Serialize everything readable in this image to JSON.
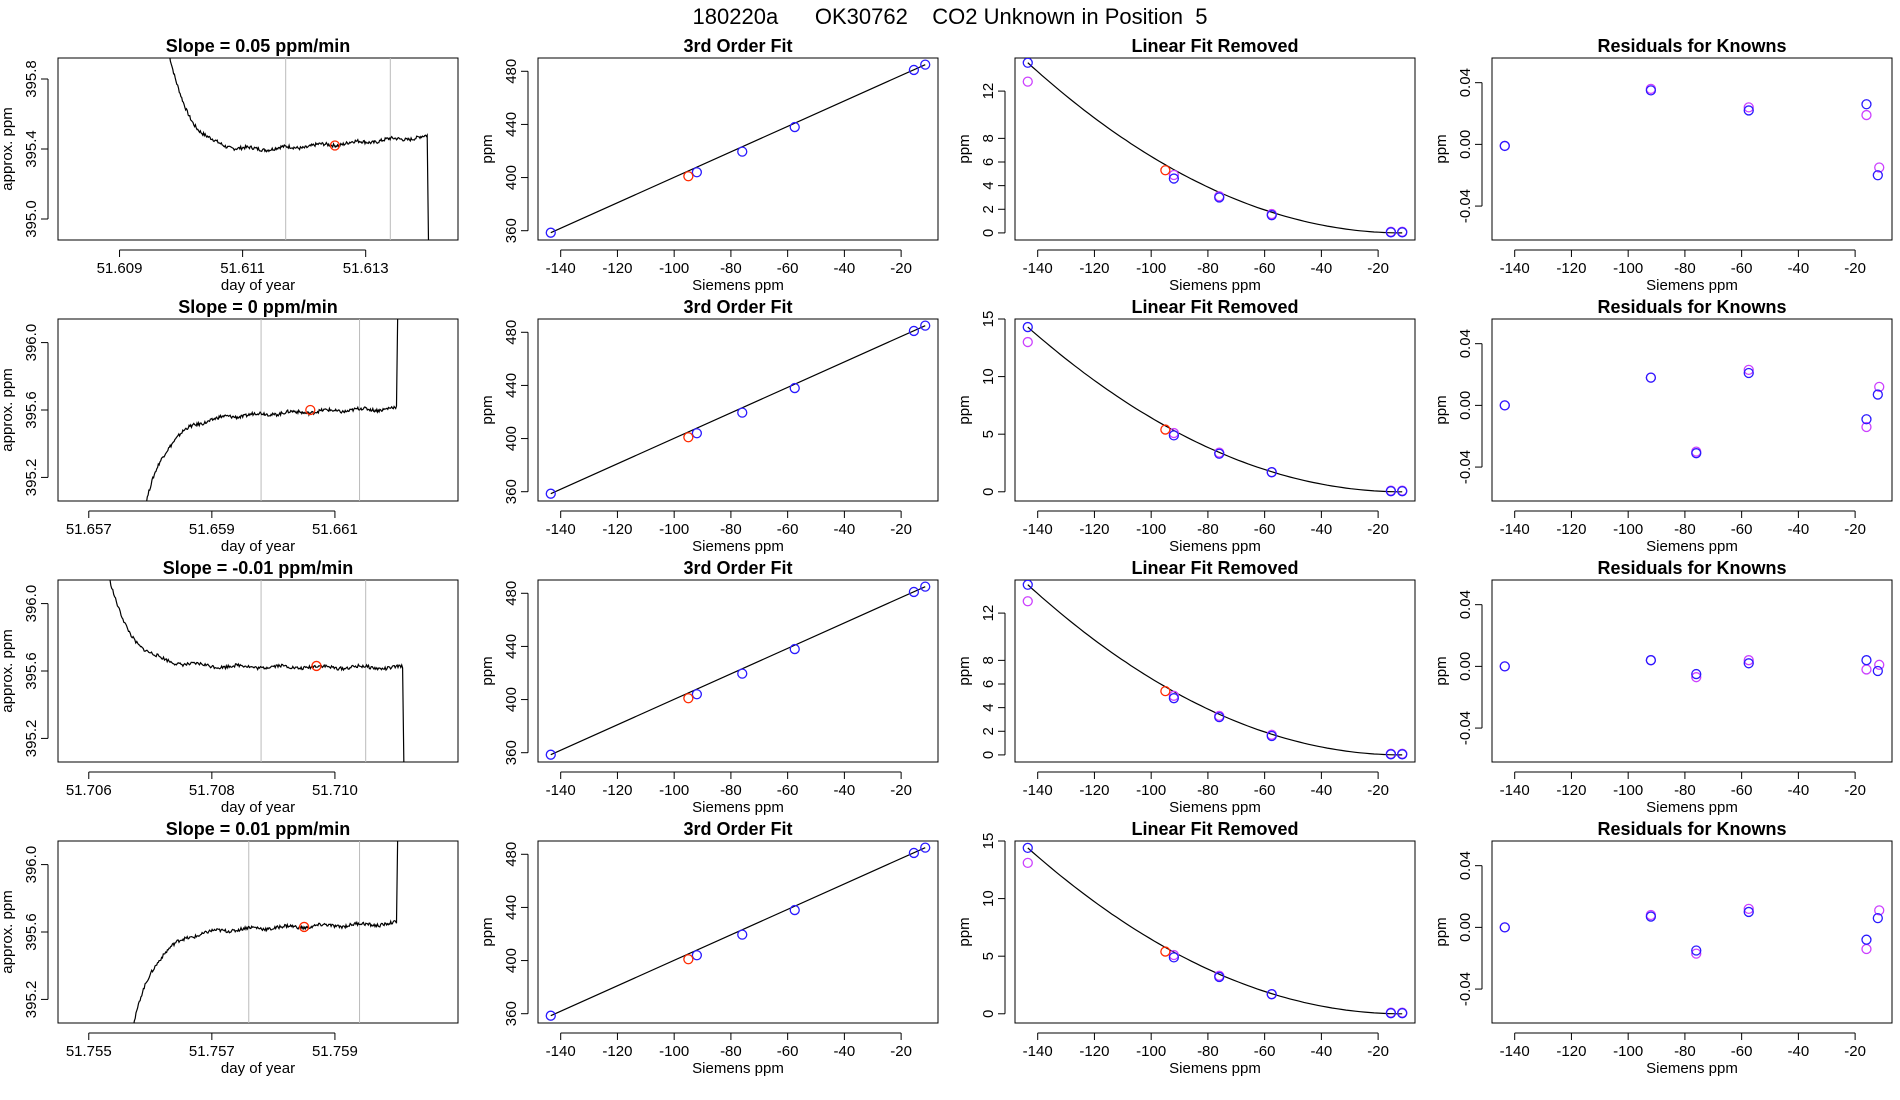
{
  "title": {
    "run_id": "180220a",
    "tank_id": "OK30762",
    "description": "CO2 Unknown in Position",
    "position": "5"
  },
  "colors": {
    "axis": "#000000",
    "trace": "#000000",
    "fit_line": "#000000",
    "vline": "#bbbbbb",
    "unknown": "#ff2a00",
    "known_a": "#2a1aff",
    "known_b": "#cc40ff"
  },
  "chart_data": [
    {
      "row": 0,
      "col": 0,
      "type": "line",
      "title": "Slope =  0.05  ppm/min",
      "xlabel": "day of year",
      "ylabel": "approx. ppm",
      "xlim": [
        51.608,
        51.6145
      ],
      "ylim": [
        394.88,
        395.92
      ],
      "xticks": [
        51.609,
        51.611,
        51.613
      ],
      "xtick_labels": [
        "51.609",
        "51.611",
        "51.613"
      ],
      "yticks": [
        395.0,
        395.4,
        395.8
      ],
      "ytick_labels": [
        "395.0",
        "395.4",
        "395.8"
      ],
      "start": 51.6098,
      "end": 51.614,
      "pre_level": 395.95,
      "level": 395.35,
      "end_level": 395.47,
      "tau": 0.00035,
      "post": "down",
      "vlines": [
        51.6117,
        51.6134
      ],
      "unknown_point": {
        "x": 51.6125,
        "y": 395.42
      }
    },
    {
      "row": 1,
      "col": 0,
      "type": "line",
      "title": "Slope =  0  ppm/min",
      "xlabel": "day of year",
      "ylabel": "approx. ppm",
      "xlim": [
        51.6565,
        51.663
      ],
      "ylim": [
        395.06,
        396.14
      ],
      "xticks": [
        51.657,
        51.659,
        51.661
      ],
      "xtick_labels": [
        "51.657",
        "51.659",
        "51.661"
      ],
      "yticks": [
        395.2,
        395.6,
        396.0
      ],
      "ytick_labels": [
        "395.2",
        "395.6",
        "396.0"
      ],
      "start": 51.6579,
      "end": 51.662,
      "pre_level": 395.0,
      "level": 395.55,
      "end_level": 395.61,
      "tau": 0.00035,
      "post": "up",
      "vlines": [
        51.6598,
        51.6614
      ],
      "unknown_point": {
        "x": 51.6606,
        "y": 395.6
      }
    },
    {
      "row": 2,
      "col": 0,
      "type": "line",
      "title": "Slope =  -0.01  ppm/min",
      "xlabel": "day of year",
      "ylabel": "approx. ppm",
      "xlim": [
        51.7055,
        51.712
      ],
      "ylim": [
        395.06,
        396.14
      ],
      "xticks": [
        51.706,
        51.708,
        51.71
      ],
      "xtick_labels": [
        "51.706",
        "51.708",
        "51.710"
      ],
      "yticks": [
        395.2,
        395.6,
        396.0
      ],
      "ytick_labels": [
        "395.2",
        "395.6",
        "396.0"
      ],
      "start": 51.7063,
      "end": 51.7111,
      "pre_level": 396.2,
      "level": 395.63,
      "end_level": 395.62,
      "tau": 0.00035,
      "post": "down",
      "vlines": [
        51.7088,
        51.7105
      ],
      "unknown_point": {
        "x": 51.7097,
        "y": 395.63
      }
    },
    {
      "row": 3,
      "col": 0,
      "type": "line",
      "title": "Slope =  0.01  ppm/min",
      "xlabel": "day of year",
      "ylabel": "approx. ppm",
      "xlim": [
        51.7545,
        51.761
      ],
      "ylim": [
        395.06,
        396.14
      ],
      "xticks": [
        51.755,
        51.757,
        51.759
      ],
      "xtick_labels": [
        "51.755",
        "51.757",
        "51.759"
      ],
      "yticks": [
        395.2,
        395.6,
        396.0
      ],
      "ytick_labels": [
        "395.2",
        "395.6",
        "396.0"
      ],
      "start": 51.7557,
      "end": 51.76,
      "pre_level": 395.0,
      "level": 395.6,
      "end_level": 395.65,
      "tau": 0.00035,
      "post": "up",
      "vlines": [
        51.7576,
        51.7594
      ],
      "unknown_point": {
        "x": 51.7585,
        "y": 395.63
      }
    },
    {
      "row": 0,
      "col": 1,
      "type": "scatter",
      "title": "3rd Order Fit",
      "xlabel": "Siemens ppm",
      "ylabel": "ppm",
      "xlim": [
        -148,
        -7
      ],
      "ylim": [
        353,
        490
      ],
      "xticks": [
        -140,
        -120,
        -100,
        -80,
        -60,
        -40,
        -20
      ],
      "yticks": [
        360,
        400,
        440,
        480
      ],
      "curve": "cubic",
      "knowns_a": [
        [
          -143.5,
          358.5
        ],
        [
          -92,
          404
        ],
        [
          -76,
          419.5
        ],
        [
          -57.5,
          438
        ],
        [
          -15.5,
          481
        ],
        [
          -11.5,
          485
        ]
      ],
      "unknowns": [
        [
          -95,
          401
        ]
      ]
    },
    {
      "row": 1,
      "col": 1,
      "type": "scatter",
      "title": "3rd Order Fit",
      "xlabel": "Siemens ppm",
      "ylabel": "ppm",
      "xlim": [
        -148,
        -7
      ],
      "ylim": [
        353,
        490
      ],
      "xticks": [
        -140,
        -120,
        -100,
        -80,
        -60,
        -40,
        -20
      ],
      "yticks": [
        360,
        400,
        440,
        480
      ],
      "curve": "cubic",
      "knowns_a": [
        [
          -143.5,
          358.5
        ],
        [
          -92,
          404
        ],
        [
          -76,
          419.5
        ],
        [
          -57.5,
          438
        ],
        [
          -15.5,
          481
        ],
        [
          -11.5,
          485
        ]
      ],
      "unknowns": [
        [
          -95,
          401
        ]
      ]
    },
    {
      "row": 2,
      "col": 1,
      "type": "scatter",
      "title": "3rd Order Fit",
      "xlabel": "Siemens ppm",
      "ylabel": "ppm",
      "xlim": [
        -148,
        -7
      ],
      "ylim": [
        353,
        490
      ],
      "xticks": [
        -140,
        -120,
        -100,
        -80,
        -60,
        -40,
        -20
      ],
      "yticks": [
        360,
        400,
        440,
        480
      ],
      "curve": "cubic",
      "knowns_a": [
        [
          -143.5,
          358.5
        ],
        [
          -92,
          404
        ],
        [
          -76,
          419.5
        ],
        [
          -57.5,
          438
        ],
        [
          -15.5,
          481
        ],
        [
          -11.5,
          485
        ]
      ],
      "unknowns": [
        [
          -95,
          401
        ]
      ]
    },
    {
      "row": 3,
      "col": 1,
      "type": "scatter",
      "title": "3rd Order Fit",
      "xlabel": "Siemens ppm",
      "ylabel": "ppm",
      "xlim": [
        -148,
        -7
      ],
      "ylim": [
        353,
        490
      ],
      "xticks": [
        -140,
        -120,
        -100,
        -80,
        -60,
        -40,
        -20
      ],
      "yticks": [
        360,
        400,
        440,
        480
      ],
      "curve": "cubic",
      "knowns_a": [
        [
          -143.5,
          358.5
        ],
        [
          -92,
          404
        ],
        [
          -76,
          419.5
        ],
        [
          -57.5,
          438
        ],
        [
          -15.5,
          481
        ],
        [
          -11.5,
          485
        ]
      ],
      "unknowns": [
        [
          -95,
          401
        ]
      ]
    },
    {
      "row": 0,
      "col": 2,
      "type": "scatter",
      "title": "Linear Fit Removed",
      "xlabel": "Siemens ppm",
      "ylabel": "ppm",
      "xlim": [
        -148,
        -7
      ],
      "ylim": [
        -0.6,
        14.8
      ],
      "xticks": [
        -140,
        -120,
        -100,
        -80,
        -60,
        -40,
        -20
      ],
      "yticks": [
        0,
        2,
        4,
        6,
        8,
        12
      ],
      "curve": "quadratic",
      "curve_peak": 14.4,
      "knowns_a": [
        [
          -143.5,
          14.4
        ],
        [
          -92,
          4.6
        ],
        [
          -76,
          3.0
        ],
        [
          -57.5,
          1.5
        ],
        [
          -15.5,
          0.05
        ],
        [
          -11.5,
          0.05
        ]
      ],
      "knowns_b": [
        [
          -143.5,
          12.8
        ],
        [
          -92,
          4.9
        ],
        [
          -76,
          3.1
        ],
        [
          -57.5,
          1.6
        ],
        [
          -15.5,
          0.1
        ],
        [
          -11.5,
          0.1
        ]
      ],
      "unknowns": [
        [
          -95,
          5.3
        ]
      ]
    },
    {
      "row": 1,
      "col": 2,
      "type": "scatter",
      "title": "Linear Fit Removed",
      "xlabel": "Siemens ppm",
      "ylabel": "ppm",
      "xlim": [
        -148,
        -7
      ],
      "ylim": [
        -0.8,
        15
      ],
      "xticks": [
        -140,
        -120,
        -100,
        -80,
        -60,
        -40,
        -20
      ],
      "yticks": [
        0,
        5,
        10,
        15
      ],
      "curve": "quadratic",
      "curve_peak": 14.3,
      "knowns_a": [
        [
          -143.5,
          14.3
        ],
        [
          -92,
          4.9
        ],
        [
          -76,
          3.3
        ],
        [
          -57.5,
          1.7
        ],
        [
          -15.5,
          0.05
        ],
        [
          -11.5,
          0.05
        ]
      ],
      "knowns_b": [
        [
          -143.5,
          13.0
        ],
        [
          -92,
          5.1
        ],
        [
          -76,
          3.4
        ],
        [
          -57.5,
          1.7
        ],
        [
          -15.5,
          0.1
        ],
        [
          -11.5,
          0.1
        ]
      ],
      "unknowns": [
        [
          -95,
          5.4
        ]
      ]
    },
    {
      "row": 2,
      "col": 2,
      "type": "scatter",
      "title": "Linear Fit Removed",
      "xlabel": "Siemens ppm",
      "ylabel": "ppm",
      "xlim": [
        -148,
        -7
      ],
      "ylim": [
        -0.6,
        14.8
      ],
      "xticks": [
        -140,
        -120,
        -100,
        -80,
        -60,
        -40,
        -20
      ],
      "yticks": [
        0,
        2,
        4,
        6,
        8,
        12
      ],
      "curve": "quadratic",
      "curve_peak": 14.4,
      "knowns_a": [
        [
          -143.5,
          14.4
        ],
        [
          -92,
          4.8
        ],
        [
          -76,
          3.2
        ],
        [
          -57.5,
          1.6
        ],
        [
          -15.5,
          0.05
        ],
        [
          -11.5,
          0.05
        ]
      ],
      "knowns_b": [
        [
          -143.5,
          13.0
        ],
        [
          -92,
          5.0
        ],
        [
          -76,
          3.3
        ],
        [
          -57.5,
          1.7
        ],
        [
          -15.5,
          0.1
        ],
        [
          -11.5,
          0.1
        ]
      ],
      "unknowns": [
        [
          -95,
          5.4
        ]
      ]
    },
    {
      "row": 3,
      "col": 2,
      "type": "scatter",
      "title": "Linear Fit Removed",
      "xlabel": "Siemens ppm",
      "ylabel": "ppm",
      "xlim": [
        -148,
        -7
      ],
      "ylim": [
        -0.8,
        15
      ],
      "xticks": [
        -140,
        -120,
        -100,
        -80,
        -60,
        -40,
        -20
      ],
      "yticks": [
        0,
        5,
        10,
        15
      ],
      "curve": "quadratic",
      "curve_peak": 14.4,
      "knowns_a": [
        [
          -143.5,
          14.4
        ],
        [
          -92,
          4.9
        ],
        [
          -76,
          3.2
        ],
        [
          -57.5,
          1.7
        ],
        [
          -15.5,
          0.05
        ],
        [
          -11.5,
          0.05
        ]
      ],
      "knowns_b": [
        [
          -143.5,
          13.1
        ],
        [
          -92,
          5.1
        ],
        [
          -76,
          3.3
        ],
        [
          -57.5,
          1.7
        ],
        [
          -15.5,
          0.1
        ],
        [
          -11.5,
          0.1
        ]
      ],
      "unknowns": [
        [
          -95,
          5.4
        ]
      ]
    },
    {
      "row": 0,
      "col": 3,
      "type": "scatter",
      "title": "Residuals for Knowns",
      "xlabel": "Siemens ppm",
      "ylabel": "ppm",
      "xlim": [
        -148,
        -7
      ],
      "ylim": [
        -0.062,
        0.056
      ],
      "xticks": [
        -140,
        -120,
        -100,
        -80,
        -60,
        -40,
        -20
      ],
      "yticks": [
        -0.04,
        0.0,
        0.04
      ],
      "ytick_labels": [
        "-0.04",
        "0.00",
        "0.04"
      ],
      "knowns_a": [
        [
          -143.5,
          -0.001
        ],
        [
          -92,
          0.035
        ],
        [
          -57.5,
          0.022
        ],
        [
          -16,
          0.026
        ],
        [
          -12,
          -0.02
        ]
      ],
      "knowns_b": [
        [
          -143.5,
          -0.001
        ],
        [
          -92,
          0.036
        ],
        [
          -57.5,
          0.024
        ],
        [
          -16,
          0.019
        ],
        [
          -11.5,
          -0.015
        ]
      ]
    },
    {
      "row": 1,
      "col": 3,
      "type": "scatter",
      "title": "Residuals for Knowns",
      "xlabel": "Siemens ppm",
      "ylabel": "ppm",
      "xlim": [
        -148,
        -7
      ],
      "ylim": [
        -0.062,
        0.056
      ],
      "xticks": [
        -140,
        -120,
        -100,
        -80,
        -60,
        -40,
        -20
      ],
      "yticks": [
        -0.04,
        0.0,
        0.04
      ],
      "ytick_labels": [
        "-0.04",
        "0.00",
        "0.04"
      ],
      "knowns_a": [
        [
          -143.5,
          0.0
        ],
        [
          -92,
          0.018
        ],
        [
          -76,
          -0.031
        ],
        [
          -57.5,
          0.021
        ],
        [
          -16,
          -0.009
        ],
        [
          -12,
          0.007
        ]
      ],
      "knowns_b": [
        [
          -143.5,
          0.0
        ],
        [
          -92,
          0.018
        ],
        [
          -76,
          -0.03
        ],
        [
          -57.5,
          0.023
        ],
        [
          -16,
          -0.014
        ],
        [
          -11.5,
          0.012
        ]
      ]
    },
    {
      "row": 2,
      "col": 3,
      "type": "scatter",
      "title": "Residuals for Knowns",
      "xlabel": "Siemens ppm",
      "ylabel": "ppm",
      "xlim": [
        -148,
        -7
      ],
      "ylim": [
        -0.062,
        0.056
      ],
      "xticks": [
        -140,
        -120,
        -100,
        -80,
        -60,
        -40,
        -20
      ],
      "yticks": [
        -0.04,
        0.0,
        0.04
      ],
      "ytick_labels": [
        "-0.04",
        "0.00",
        "0.04"
      ],
      "knowns_a": [
        [
          -143.5,
          0.0
        ],
        [
          -92,
          0.004
        ],
        [
          -76,
          -0.005
        ],
        [
          -57.5,
          0.002
        ],
        [
          -16,
          0.004
        ],
        [
          -12,
          -0.003
        ]
      ],
      "knowns_b": [
        [
          -143.5,
          0.0
        ],
        [
          -92,
          0.004
        ],
        [
          -76,
          -0.007
        ],
        [
          -57.5,
          0.004
        ],
        [
          -16,
          -0.002
        ],
        [
          -11.5,
          0.001
        ]
      ]
    },
    {
      "row": 3,
      "col": 3,
      "type": "scatter",
      "title": "Residuals for Knowns",
      "xlabel": "Siemens ppm",
      "ylabel": "ppm",
      "xlim": [
        -148,
        -7
      ],
      "ylim": [
        -0.062,
        0.056
      ],
      "xticks": [
        -140,
        -120,
        -100,
        -80,
        -60,
        -40,
        -20
      ],
      "yticks": [
        -0.04,
        0.0,
        0.04
      ],
      "ytick_labels": [
        "-0.04",
        "0.00",
        "0.04"
      ],
      "knowns_a": [
        [
          -143.5,
          0.0
        ],
        [
          -92,
          0.007
        ],
        [
          -76,
          -0.015
        ],
        [
          -57.5,
          0.01
        ],
        [
          -16,
          -0.008
        ],
        [
          -12,
          0.006
        ]
      ],
      "knowns_b": [
        [
          -143.5,
          0.0
        ],
        [
          -92,
          0.008
        ],
        [
          -76,
          -0.017
        ],
        [
          -57.5,
          0.012
        ],
        [
          -16,
          -0.014
        ],
        [
          -11.5,
          0.011
        ]
      ]
    }
  ]
}
